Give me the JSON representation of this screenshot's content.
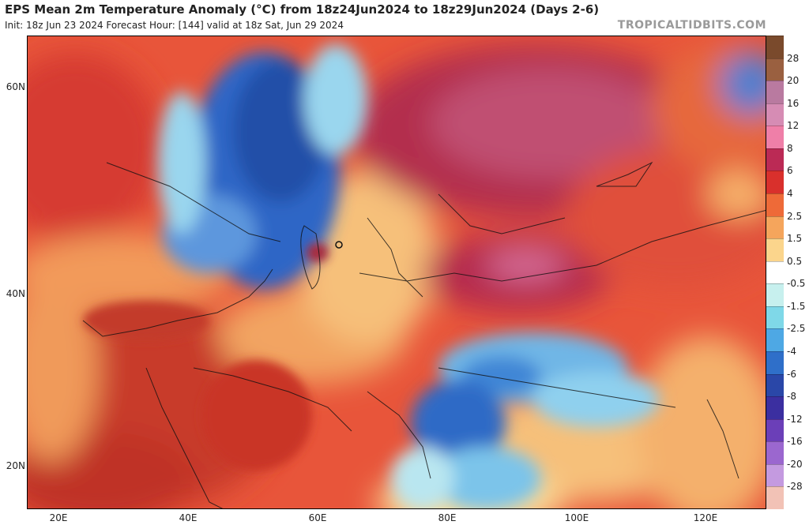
{
  "header": {
    "title": "EPS Mean 2m Temperature Anomaly (°C) from 18z24Jun2024 to 18z29Jun2024 (Days 2-6)",
    "subtitle": "Init: 18z Jun 23 2024   Forecast Hour: [144]   valid at 18z Sat, Jun 29 2024",
    "brand": "TROPICALTIDBITS.COM"
  },
  "map": {
    "lat_labels": [
      "60N",
      "40N",
      "20N"
    ],
    "lon_labels": [
      "20E",
      "40E",
      "60E",
      "80E",
      "100E",
      "120E"
    ]
  },
  "colorbar": {
    "labels": [
      "28",
      "20",
      "16",
      "12",
      "8",
      "6",
      "4",
      "2.5",
      "1.5",
      "0.5",
      "-0.5",
      "-1.5",
      "-2.5",
      "-4",
      "-6",
      "-8",
      "-12",
      "-16",
      "-20",
      "-28"
    ],
    "colors": [
      "#7a4a2c",
      "#9a6040",
      "#b97aa0",
      "#d68cb4",
      "#ef7fa8",
      "#bb2a55",
      "#d9302c",
      "#ee6a38",
      "#f5a55c",
      "#fbd58c",
      "#ffffff",
      "#c7f0ee",
      "#7fd8e8",
      "#4ea8e4",
      "#2f6fc9",
      "#2a47a8",
      "#3b2fa0",
      "#6b3fb8",
      "#9b67cf",
      "#c49ae0",
      "#f2c2b6"
    ]
  }
}
